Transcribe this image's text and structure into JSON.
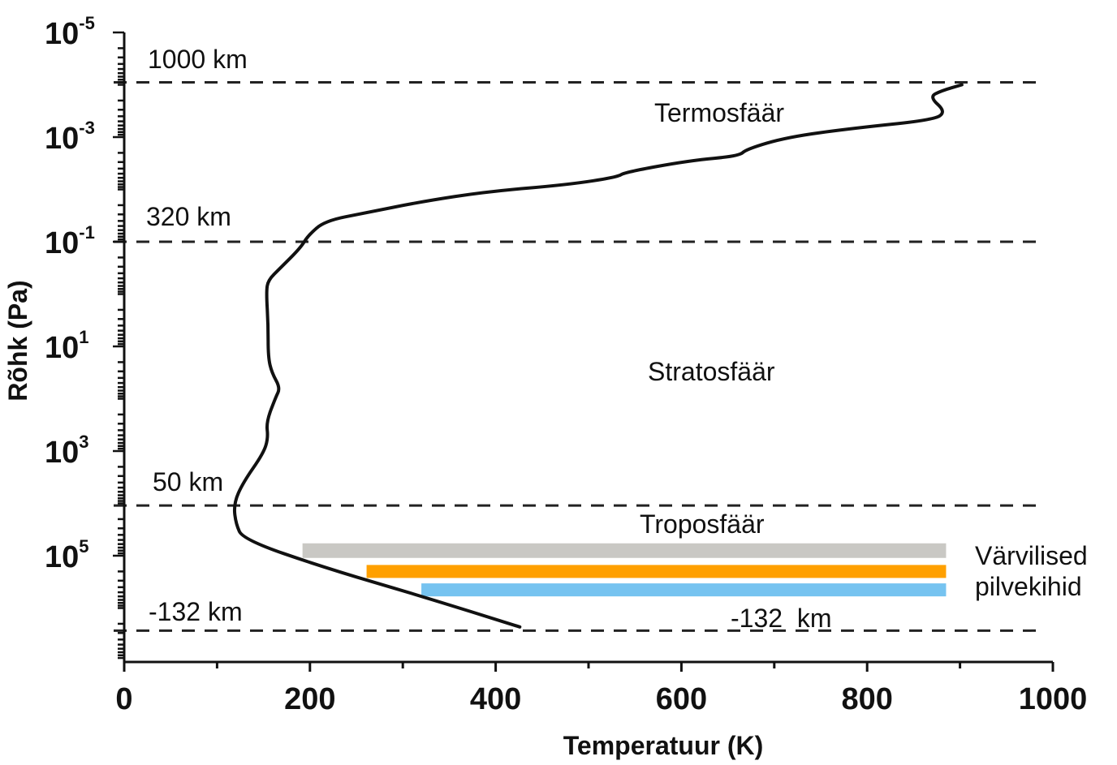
{
  "chart_data": {
    "type": "line",
    "xlabel": "Temperatuur (K)",
    "ylabel": "Rõhk (Pa)",
    "xlim": [
      0,
      1000
    ],
    "ylim": [
      1e-05,
      10000000.0
    ],
    "y_scale": "log",
    "y_inverted": true,
    "grid": false,
    "x_ticks": [
      "0",
      "200",
      "400",
      "600",
      "800",
      "1000"
    ],
    "x_tick_values": [
      0,
      200,
      400,
      600,
      800,
      1000
    ],
    "y_ticks": [
      {
        "base": "10",
        "exp": "-5",
        "value": 1e-05
      },
      {
        "base": "10",
        "exp": "-3",
        "value": 0.001
      },
      {
        "base": "10",
        "exp": "-1",
        "value": 0.1
      },
      {
        "base": "10",
        "exp": "1",
        "value": 10.0
      },
      {
        "base": "10",
        "exp": "3",
        "value": 1000.0
      },
      {
        "base": "10",
        "exp": "5",
        "value": 100000.0
      }
    ],
    "series": [
      {
        "color": "#111111",
        "points": [
          [
            426,
            2300000.0
          ],
          [
            321,
            600000.0
          ],
          [
            216,
            170000.0
          ],
          [
            128,
            49000.0
          ],
          [
            120,
            24000.0
          ],
          [
            118,
            10000.0
          ],
          [
            128,
            4000.0
          ],
          [
            150,
            1100.0
          ],
          [
            155,
            560
          ],
          [
            153,
            280
          ],
          [
            163,
            95
          ],
          [
            168,
            62
          ],
          [
            159,
            32
          ],
          [
            155,
            16
          ],
          [
            155,
            3.8
          ],
          [
            153,
            0.91
          ],
          [
            155,
            0.54
          ],
          [
            168,
            0.32
          ],
          [
            190,
            0.13
          ],
          [
            198,
            0.076
          ],
          [
            216,
            0.04
          ],
          [
            260,
            0.028
          ],
          [
            321,
            0.017
          ],
          [
            391,
            0.011
          ],
          [
            478,
            0.0081
          ],
          [
            531,
            0.0058
          ],
          [
            539,
            0.0047
          ],
          [
            609,
            0.0028
          ],
          [
            662,
            0.0023
          ],
          [
            670,
            0.0017
          ],
          [
            714,
            0.001
          ],
          [
            784,
            0.00068
          ],
          [
            871,
            0.00047
          ],
          [
            885,
            0.00033
          ],
          [
            867,
            0.00017
          ],
          [
            880,
            0.00013
          ],
          [
            902,
            0.0001
          ]
        ]
      }
    ],
    "boundaries": [
      {
        "label": "1000 km",
        "pressure": 9e-05
      },
      {
        "label": "320 km",
        "pressure": 0.1
      },
      {
        "label": "50 km",
        "pressure": 11000.0
      },
      {
        "label": "-132 km",
        "pressure": 2700000.0
      }
    ],
    "boundary_right_label": "-132  km",
    "regions": [
      {
        "label": "Termosfäär"
      },
      {
        "label": "Stratosfäär"
      },
      {
        "label": "Troposfäär"
      }
    ],
    "cloud_layers": {
      "label_line1": "Värvilised",
      "label_line2": "pilvekihid",
      "bars": [
        {
          "color": "#c9c8c4",
          "t_start": 192,
          "t_end": 885,
          "pressure": 80000.0
        },
        {
          "color": "#ffa000",
          "t_start": 261,
          "t_end": 885,
          "pressure": 200000.0
        },
        {
          "color": "#76c3f0",
          "t_start": 320,
          "t_end": 885,
          "pressure": 450000.0
        }
      ]
    }
  }
}
